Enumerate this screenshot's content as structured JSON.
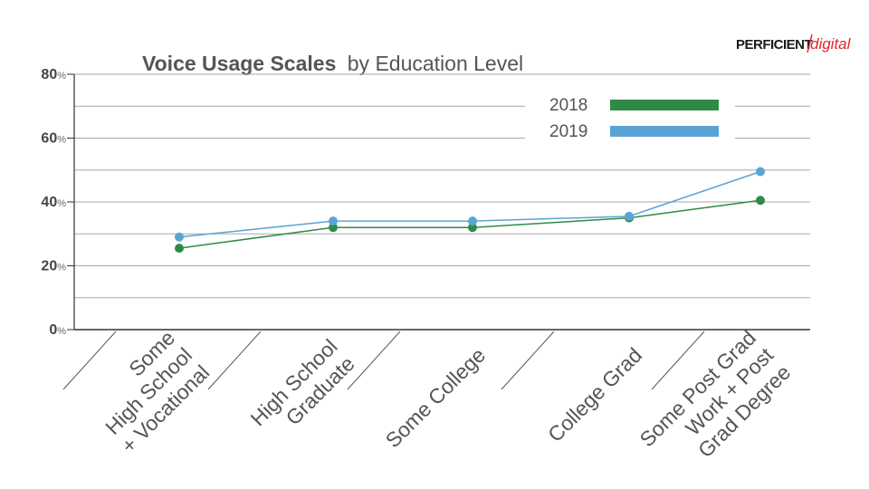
{
  "logo": {
    "left": "PERFICIENT",
    "right": "digital"
  },
  "chart_data": {
    "type": "line",
    "title": "Voice Usage Scales",
    "title_suffix": "by Education Level",
    "categories": [
      [
        "Some",
        "High School",
        "+ Vocational"
      ],
      [
        "High School",
        "Graduate"
      ],
      [
        "Some College"
      ],
      [
        "College Grad"
      ],
      [
        "Some Post Grad",
        "Work + Post",
        "Grad Degree"
      ]
    ],
    "series": [
      {
        "name": "2018",
        "color": "#2e8b45",
        "values": [
          25.5,
          32,
          32,
          35,
          40.5
        ]
      },
      {
        "name": "2019",
        "color": "#5aa3d6",
        "values": [
          29,
          34,
          34,
          35.5,
          49.5
        ]
      }
    ],
    "ylim": [
      0,
      80
    ],
    "yticks": [
      {
        "value": 0,
        "num": "0",
        "unit": "%"
      },
      {
        "value": 20,
        "num": "20",
        "unit": "%"
      },
      {
        "value": 40,
        "num": "40",
        "unit": "%"
      },
      {
        "value": 60,
        "num": "60",
        "unit": "%"
      },
      {
        "value": 80,
        "num": "80",
        "unit": "%"
      }
    ],
    "gridlines": [
      10,
      20,
      30,
      40,
      50,
      60,
      70,
      80
    ],
    "legend_placement": "top-right",
    "grid": true
  }
}
